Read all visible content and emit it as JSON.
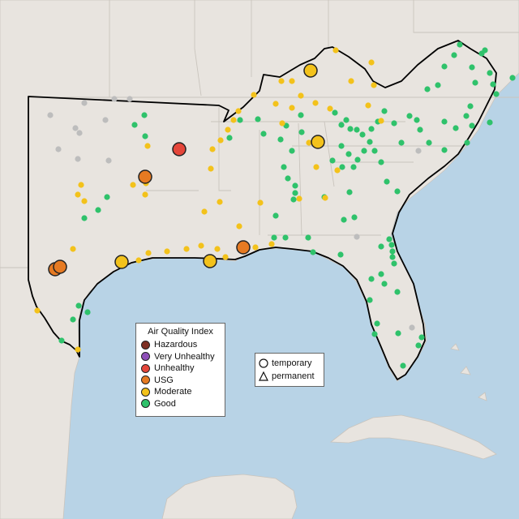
{
  "legend": {
    "title": "Air Quality Index",
    "categories": [
      {
        "label": "Hazardous",
        "color": "#7e2e22"
      },
      {
        "label": "Very Unhealthy",
        "color": "#8e4fb8"
      },
      {
        "label": "Unhealthy",
        "color": "#e5463a"
      },
      {
        "label": "USG",
        "color": "#e67a22"
      },
      {
        "label": "Moderate",
        "color": "#f3c21b"
      },
      {
        "label": "Good",
        "color": "#2fc26b"
      }
    ]
  },
  "shape_legend": {
    "temporary": "temporary",
    "permanent": "permanent"
  },
  "colors": {
    "water": "#b8d3e6",
    "land": "#e8e4df",
    "region_outline": "#000000",
    "no_data": "#bdbdbd"
  }
}
